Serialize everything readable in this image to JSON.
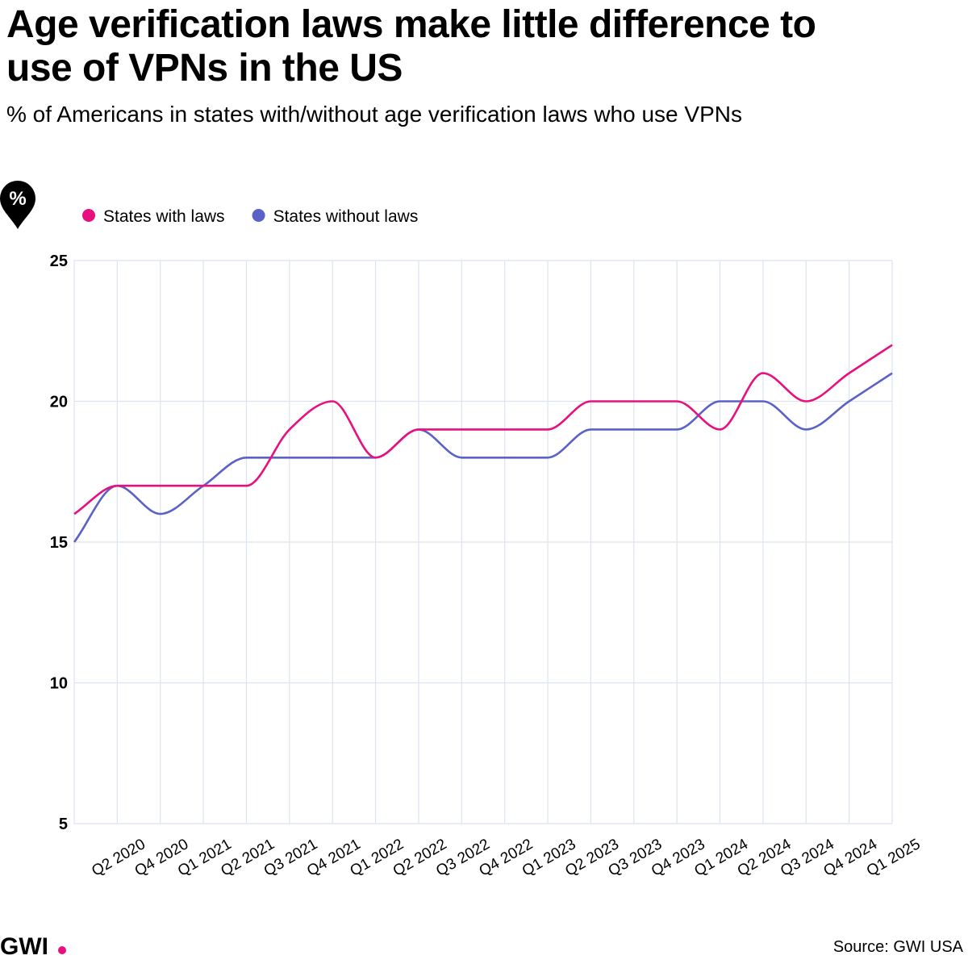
{
  "chart_data": {
    "type": "line",
    "title": "Age verification laws make little difference to use of VPNs in the US",
    "subtitle": "% of Americans in states with/without age verification laws who use VPNs",
    "y_axis_icon": "%",
    "categories": [
      null,
      "Q2 2020",
      "Q4 2020",
      "Q1 2021",
      "Q2 2021",
      "Q3 2021",
      "Q4 2021",
      "Q1 2022",
      "Q2 2022",
      "Q3 2022",
      "Q4 2022",
      "Q1 2023",
      "Q2 2023",
      "Q3 2023",
      "Q4 2023",
      "Q1 2024",
      "Q2 2024",
      "Q3 2024",
      "Q4 2024",
      "Q1 2025"
    ],
    "series": [
      {
        "name": "States with laws",
        "color": "#e8107e",
        "values": [
          16,
          17,
          17,
          17,
          17,
          19,
          20,
          18,
          19,
          19,
          19,
          19,
          20,
          20,
          20,
          19,
          21,
          20,
          21,
          22
        ]
      },
      {
        "name": "States without laws",
        "color": "#5a62c8",
        "values": [
          15,
          17,
          16,
          17,
          18,
          18,
          18,
          18,
          19,
          18,
          18,
          18,
          19,
          19,
          19,
          20,
          20,
          19,
          20,
          21
        ]
      }
    ],
    "ylim": [
      5,
      25
    ],
    "yticks": [
      5,
      10,
      15,
      20,
      25
    ],
    "grid": true,
    "legend": "top-left",
    "logo": "GWI",
    "source": "Source: GWI USA"
  }
}
